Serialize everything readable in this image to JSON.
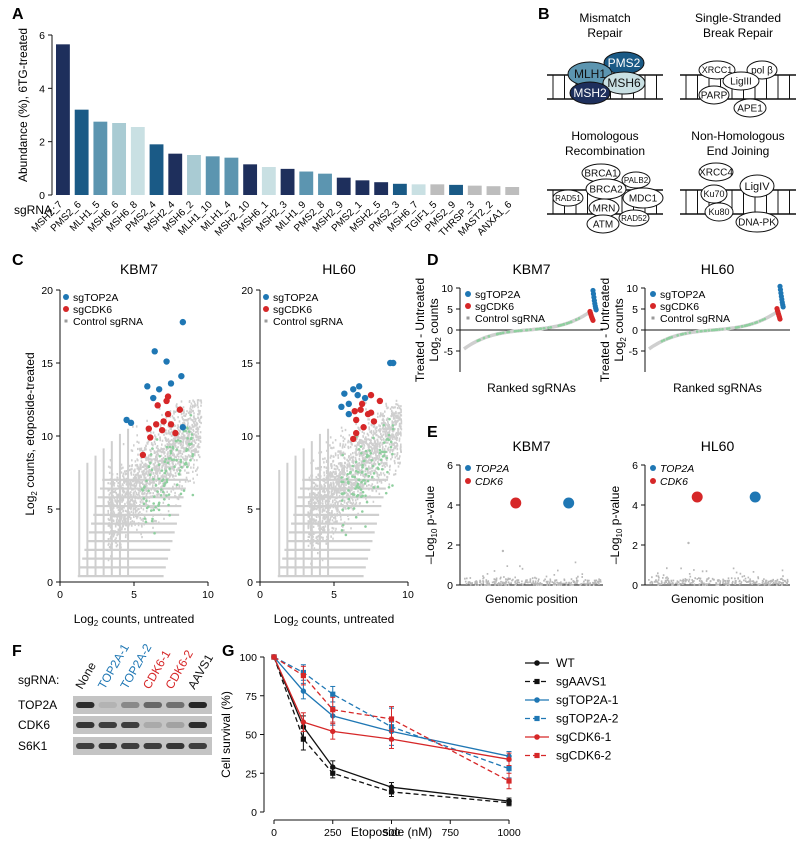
{
  "panel_letters": {
    "A": "A",
    "B": "B",
    "C": "C",
    "D": "D",
    "E": "E",
    "F": "F",
    "G": "G"
  },
  "panelA": {
    "ylabel": "Abundance (%), 6TG-treated",
    "row_label": "sgRNA:",
    "colors": {
      "dark": "#1e2f5c",
      "mid": "#1a5a86",
      "teal": "#5c95b0",
      "light": "#a9cbd3",
      "pale": "#c9e0e3",
      "grey": "#bdbdbd"
    }
  },
  "panelB": {
    "titles": [
      "Mismatch Repair",
      "Single-Stranded Break Repair",
      "Homologous Recombination",
      "Non-Homologous End Joining"
    ],
    "title_lines": [
      [
        "Mismatch",
        "Repair"
      ],
      [
        "Single-Stranded",
        "Break Repair"
      ],
      [
        "Homologous",
        "Recombination"
      ],
      [
        "Non-Homologous",
        "End Joining"
      ]
    ],
    "mmr": [
      "PMS2",
      "MLH1",
      "MSH6",
      "MSH2"
    ],
    "ssbr": [
      "XRCC1",
      "pol β",
      "LigIII",
      "PARP",
      "APE1"
    ],
    "hr": [
      "BRCA1",
      "PALB2",
      "BRCA2",
      "MDC1",
      "RAD51",
      "MRN",
      "ATM",
      "RAD52"
    ],
    "nhej": [
      "XRCC4",
      "Ku70",
      "LigIV",
      "Ku80",
      "DNA-PK"
    ]
  },
  "panelC": {
    "titles": [
      "KBM7",
      "HL60"
    ],
    "ylabel_a": "Log",
    "ylabel_sub": "2",
    "ylabel_b": " counts, etoposide-treated",
    "xlabel_a": "Log",
    "xlabel_sub": "2",
    "xlabel_b": " counts, untreated",
    "legend": [
      "sgTOP2A",
      "sgCDK6",
      "Control sgRNA"
    ],
    "colors": {
      "top2a": "#1f77b4",
      "cdk6": "#d62728",
      "control": "#8fcf9f",
      "bg": "#cfcfcf"
    }
  },
  "panelD": {
    "titles": [
      "KBM7",
      "HL60"
    ],
    "ylabel1": "Treated - Untreated",
    "ylabel2a": "Log",
    "ylabel2sub": "2",
    "ylabel2b": " counts",
    "xlabel": "Ranked sgRNAs",
    "legend": [
      "sgTOP2A",
      "sgCDK6",
      "Control sgRNA"
    ]
  },
  "panelE": {
    "titles": [
      "KBM7",
      "HL60"
    ],
    "ylabel_a": "–Log",
    "ylabel_sub": "10",
    "ylabel_b": " p-value",
    "xlabel": "Genomic position",
    "legend": [
      "TOP2A",
      "CDK6"
    ]
  },
  "panelF": {
    "sgRNA_label": "sgRNA:",
    "lanes": [
      "None",
      "TOP2A-1",
      "TOP2A-2",
      "CDK6-1",
      "CDK6-2",
      "AAVS1"
    ],
    "lane_colors": [
      "#111111",
      "#1f77b4",
      "#1f77b4",
      "#d62728",
      "#d62728",
      "#111111"
    ],
    "rows": [
      "TOP2A",
      "CDK6",
      "S6K1"
    ]
  },
  "chart_data": [
    {
      "type": "bar",
      "panel": "A",
      "categories": [
        "MSH2_7",
        "PMS2_6",
        "MLH1_5",
        "MSH6_6",
        "MSH6_8",
        "PMS2_4",
        "MSH2_4",
        "MSH6_2",
        "MLH1_10",
        "MLH1_4",
        "MSH2_10",
        "MSH6_1",
        "MSH2_3",
        "MLH1_9",
        "PMS2_8",
        "MSH2_9",
        "PMS2_1",
        "MSH2_5",
        "PMS2_3",
        "MSH6_7",
        "TGIF1_5",
        "PMS2_9",
        "THRSP_3",
        "MAST2_2",
        "ANXA1_6"
      ],
      "values": [
        5.65,
        3.2,
        2.75,
        2.7,
        2.55,
        1.9,
        1.55,
        1.5,
        1.45,
        1.4,
        1.15,
        1.05,
        0.98,
        0.88,
        0.8,
        0.65,
        0.55,
        0.48,
        0.42,
        0.4,
        0.4,
        0.38,
        0.35,
        0.33,
        0.3
      ],
      "color_class": [
        "dark",
        "mid",
        "teal",
        "light",
        "pale",
        "mid",
        "dark",
        "light",
        "teal",
        "teal",
        "dark",
        "pale",
        "dark",
        "teal",
        "teal",
        "dark",
        "dark",
        "dark",
        "mid",
        "pale",
        "grey",
        "mid",
        "grey",
        "grey",
        "grey"
      ],
      "ylabel": "Abundance (%), 6TG-treated",
      "ylim": [
        0,
        6
      ],
      "yticks": [
        0,
        2,
        4,
        6
      ]
    },
    {
      "type": "scatter",
      "panel": "C",
      "title": "KBM7",
      "xlim": [
        0,
        10
      ],
      "ylim": [
        0,
        20
      ],
      "xticks": [
        0,
        5,
        10
      ],
      "yticks": [
        0,
        5,
        10,
        15,
        20
      ],
      "series": [
        {
          "name": "sgTOP2A",
          "x": [
            8.3,
            6.4,
            7.2,
            8.2,
            7.5,
            5.9,
            6.3,
            6.7,
            4.5,
            4.8,
            8.3
          ],
          "y": [
            17.8,
            15.8,
            15.1,
            14.1,
            13.6,
            13.4,
            12.6,
            13.2,
            11.1,
            10.9,
            10.6
          ]
        },
        {
          "name": "sgCDK6",
          "x": [
            6.6,
            7.2,
            8.1,
            7.3,
            7.0,
            6.5,
            6.9,
            7.5,
            7.8,
            6.0,
            6.1,
            5.6,
            7.3
          ],
          "y": [
            12.1,
            12.4,
            11.8,
            11.5,
            11.0,
            10.8,
            10.4,
            10.8,
            10.2,
            10.5,
            9.9,
            8.7,
            12.7
          ]
        }
      ]
    },
    {
      "type": "scatter",
      "panel": "C",
      "title": "HL60",
      "xlim": [
        0,
        10
      ],
      "ylim": [
        0,
        20
      ],
      "xticks": [
        0,
        5,
        10
      ],
      "yticks": [
        0,
        5,
        10,
        15,
        20
      ],
      "series": [
        {
          "name": "sgTOP2A",
          "x": [
            8.8,
            9.0,
            6.7,
            6.3,
            6.6,
            7.1,
            5.7,
            6.0,
            5.5,
            6.0
          ],
          "y": [
            15.0,
            15.0,
            13.4,
            13.2,
            12.8,
            12.6,
            12.9,
            12.2,
            12.0,
            11.5
          ]
        },
        {
          "name": "sgCDK6",
          "x": [
            7.5,
            8.1,
            6.9,
            6.8,
            7.3,
            7.7,
            6.4,
            6.5,
            7.0,
            6.5,
            6.3,
            7.5
          ],
          "y": [
            12.8,
            12.4,
            12.2,
            11.8,
            11.5,
            11.0,
            11.7,
            11.1,
            10.6,
            10.2,
            9.8,
            11.6
          ]
        }
      ]
    },
    {
      "type": "line",
      "panel": "D",
      "title": "KBM7",
      "ylim": [
        -10,
        10
      ],
      "yticks": [
        -5,
        0,
        5,
        10
      ],
      "series": [
        {
          "name": "sgTOP2A",
          "y": [
            9.4,
            8.6,
            7.8,
            7.0,
            6.3,
            5.7,
            5.2,
            4.8
          ]
        },
        {
          "name": "sgCDK6",
          "y": [
            4.4,
            4.0,
            3.6,
            3.2,
            2.9,
            2.6,
            2.3
          ]
        }
      ]
    },
    {
      "type": "line",
      "panel": "D",
      "title": "HL60",
      "ylim": [
        -10,
        10
      ],
      "yticks": [
        -5,
        0,
        5,
        10
      ],
      "series": [
        {
          "name": "sgTOP2A",
          "y": [
            10.4,
            9.6,
            8.8,
            8.0,
            7.3,
            6.6,
            6.0,
            5.5
          ]
        },
        {
          "name": "sgCDK6",
          "y": [
            5.1,
            4.6,
            4.2,
            3.8,
            3.4,
            3.0,
            2.6
          ]
        }
      ]
    },
    {
      "type": "scatter",
      "panel": "E",
      "title": "KBM7",
      "ylim": [
        0,
        6
      ],
      "yticks": [
        0,
        2,
        4,
        6
      ],
      "series": [
        {
          "name": "TOP2A",
          "x": [
            0.76
          ],
          "y": [
            4.1
          ]
        },
        {
          "name": "CDK6",
          "x": [
            0.39
          ],
          "y": [
            4.1
          ]
        }
      ]
    },
    {
      "type": "scatter",
      "panel": "E",
      "title": "HL60",
      "ylim": [
        0,
        6
      ],
      "yticks": [
        0,
        2,
        4,
        6
      ],
      "series": [
        {
          "name": "TOP2A",
          "x": [
            0.76
          ],
          "y": [
            4.4
          ]
        },
        {
          "name": "CDK6",
          "x": [
            0.36
          ],
          "y": [
            4.4
          ]
        }
      ]
    },
    {
      "type": "line",
      "panel": "G",
      "xlabel": "Etoposide (nM)",
      "ylabel": "Cell survival (%)",
      "xlim": [
        0,
        1000
      ],
      "ylim": [
        0,
        100
      ],
      "xticks": [
        0,
        250,
        500,
        750,
        1000
      ],
      "yticks": [
        0,
        25,
        50,
        75,
        100
      ],
      "x": [
        0,
        125,
        250,
        500,
        1000
      ],
      "series": [
        {
          "name": "WT",
          "values": [
            100,
            55,
            29,
            16,
            7
          ],
          "err": [
            0,
            7,
            4,
            3,
            2
          ],
          "color": "#111111",
          "dash": false,
          "marker": "circle"
        },
        {
          "name": "sgAAVS1",
          "values": [
            100,
            47,
            25,
            13,
            6
          ],
          "err": [
            0,
            7,
            3,
            3,
            2
          ],
          "color": "#111111",
          "dash": true,
          "marker": "square"
        },
        {
          "name": "sgTOP2A-1",
          "values": [
            100,
            78,
            62,
            52,
            36
          ],
          "err": [
            0,
            5,
            6,
            6,
            3
          ],
          "color": "#1f77b4",
          "dash": false,
          "marker": "circle"
        },
        {
          "name": "sgTOP2A-2",
          "values": [
            100,
            90,
            76,
            55,
            28
          ],
          "err": [
            0,
            5,
            5,
            12,
            6
          ],
          "color": "#1f77b4",
          "dash": true,
          "marker": "square"
        },
        {
          "name": "sgCDK6-1",
          "values": [
            100,
            58,
            52,
            47,
            34
          ],
          "err": [
            0,
            6,
            5,
            6,
            4
          ],
          "color": "#d62728",
          "dash": false,
          "marker": "circle"
        },
        {
          "name": "sgCDK6-2",
          "values": [
            100,
            88,
            66,
            60,
            20
          ],
          "err": [
            0,
            6,
            8,
            8,
            5
          ],
          "color": "#d62728",
          "dash": true,
          "marker": "square"
        }
      ]
    }
  ]
}
